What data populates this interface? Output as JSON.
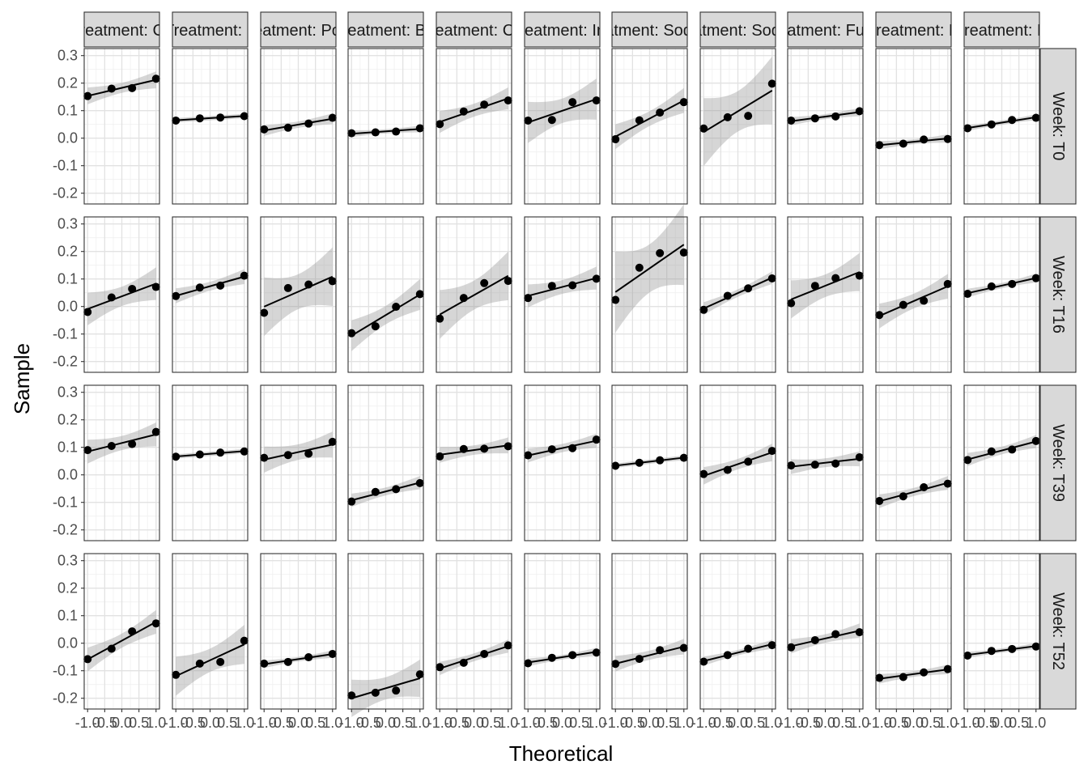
{
  "chart_data": {
    "type": "scatter",
    "title": "",
    "xlabel": "Theoretical",
    "ylabel": "Sample",
    "xlim": [
      -1.1,
      1.1
    ],
    "ylim": [
      -0.24,
      0.33
    ],
    "x_ticks": [
      -1.0,
      -0.5,
      0.0,
      0.5,
      1.0
    ],
    "x_tick_labels": [
      "-1.0",
      "-0.5",
      "0.0",
      "0.5",
      "1.0"
    ],
    "y_ticks": [
      0.3,
      0.2,
      0.1,
      0.0,
      -0.1,
      -0.2
    ],
    "y_tick_labels": [
      "0.3",
      "0.2",
      "0.1",
      "0.0",
      "-0.1",
      "-0.2"
    ],
    "grid": true,
    "facet_cols": [
      "Treatment: Co",
      "Treatment: L",
      "Treatment: Poult",
      "Treatment: Bio",
      "Treatment: Citr",
      "Treatment: Ino",
      "Treatment: Sodium",
      "Treatment: Sodium",
      "Treatment: Fuma",
      "Treatment: H",
      "Treatment: H"
    ],
    "facet_rows": [
      "Week: T0",
      "Week: T16",
      "Week: T39",
      "Week: T52"
    ],
    "x_points": [
      -1.0,
      -0.3,
      0.3,
      1.0
    ],
    "panels": [
      [
        [
          0.153,
          0.18,
          0.182,
          0.216
        ],
        [
          0.064,
          0.072,
          0.075,
          0.08
        ],
        [
          0.032,
          0.038,
          0.053,
          0.074
        ],
        [
          0.018,
          0.021,
          0.024,
          0.036
        ],
        [
          0.051,
          0.097,
          0.122,
          0.137
        ],
        [
          0.064,
          0.066,
          0.131,
          0.137
        ],
        [
          -0.004,
          0.065,
          0.093,
          0.131
        ],
        [
          0.035,
          0.076,
          0.081,
          0.198
        ],
        [
          0.064,
          0.072,
          0.079,
          0.098
        ],
        [
          -0.025,
          -0.02,
          -0.005,
          -0.003
        ],
        [
          0.036,
          0.05,
          0.066,
          0.074
        ]
      ],
      [
        [
          -0.02,
          0.033,
          0.064,
          0.071
        ],
        [
          0.038,
          0.069,
          0.076,
          0.112
        ],
        [
          -0.023,
          0.067,
          0.08,
          0.092
        ],
        [
          -0.097,
          -0.072,
          -0.001,
          0.045
        ],
        [
          -0.044,
          0.031,
          0.085,
          0.093
        ],
        [
          0.031,
          0.075,
          0.077,
          0.101
        ],
        [
          0.024,
          0.141,
          0.194,
          0.196
        ],
        [
          -0.012,
          0.039,
          0.066,
          0.102
        ],
        [
          0.012,
          0.075,
          0.103,
          0.112
        ],
        [
          -0.031,
          0.006,
          0.021,
          0.082
        ],
        [
          0.046,
          0.073,
          0.082,
          0.103
        ]
      ],
      [
        [
          0.09,
          0.105,
          0.112,
          0.156
        ],
        [
          0.066,
          0.074,
          0.081,
          0.085
        ],
        [
          0.062,
          0.072,
          0.077,
          0.12
        ],
        [
          -0.097,
          -0.062,
          -0.052,
          -0.03
        ],
        [
          0.067,
          0.094,
          0.095,
          0.104
        ],
        [
          0.071,
          0.093,
          0.097,
          0.128
        ],
        [
          0.033,
          0.044,
          0.053,
          0.062
        ],
        [
          0.003,
          0.018,
          0.048,
          0.087
        ],
        [
          0.034,
          0.037,
          0.041,
          0.064
        ],
        [
          -0.095,
          -0.078,
          -0.045,
          -0.032
        ],
        [
          0.054,
          0.085,
          0.092,
          0.123
        ]
      ],
      [
        [
          -0.058,
          -0.02,
          0.043,
          0.072
        ],
        [
          -0.115,
          -0.074,
          -0.068,
          0.009
        ],
        [
          -0.074,
          -0.068,
          -0.051,
          -0.039
        ],
        [
          -0.19,
          -0.18,
          -0.172,
          -0.113
        ],
        [
          -0.087,
          -0.071,
          -0.039,
          -0.008
        ],
        [
          -0.073,
          -0.053,
          -0.043,
          -0.034
        ],
        [
          -0.075,
          -0.057,
          -0.025,
          -0.017
        ],
        [
          -0.067,
          -0.043,
          -0.02,
          -0.007
        ],
        [
          -0.015,
          0.011,
          0.033,
          0.04
        ],
        [
          -0.126,
          -0.123,
          -0.106,
          -0.094
        ],
        [
          -0.045,
          -0.028,
          -0.021,
          -0.012
        ]
      ]
    ]
  }
}
